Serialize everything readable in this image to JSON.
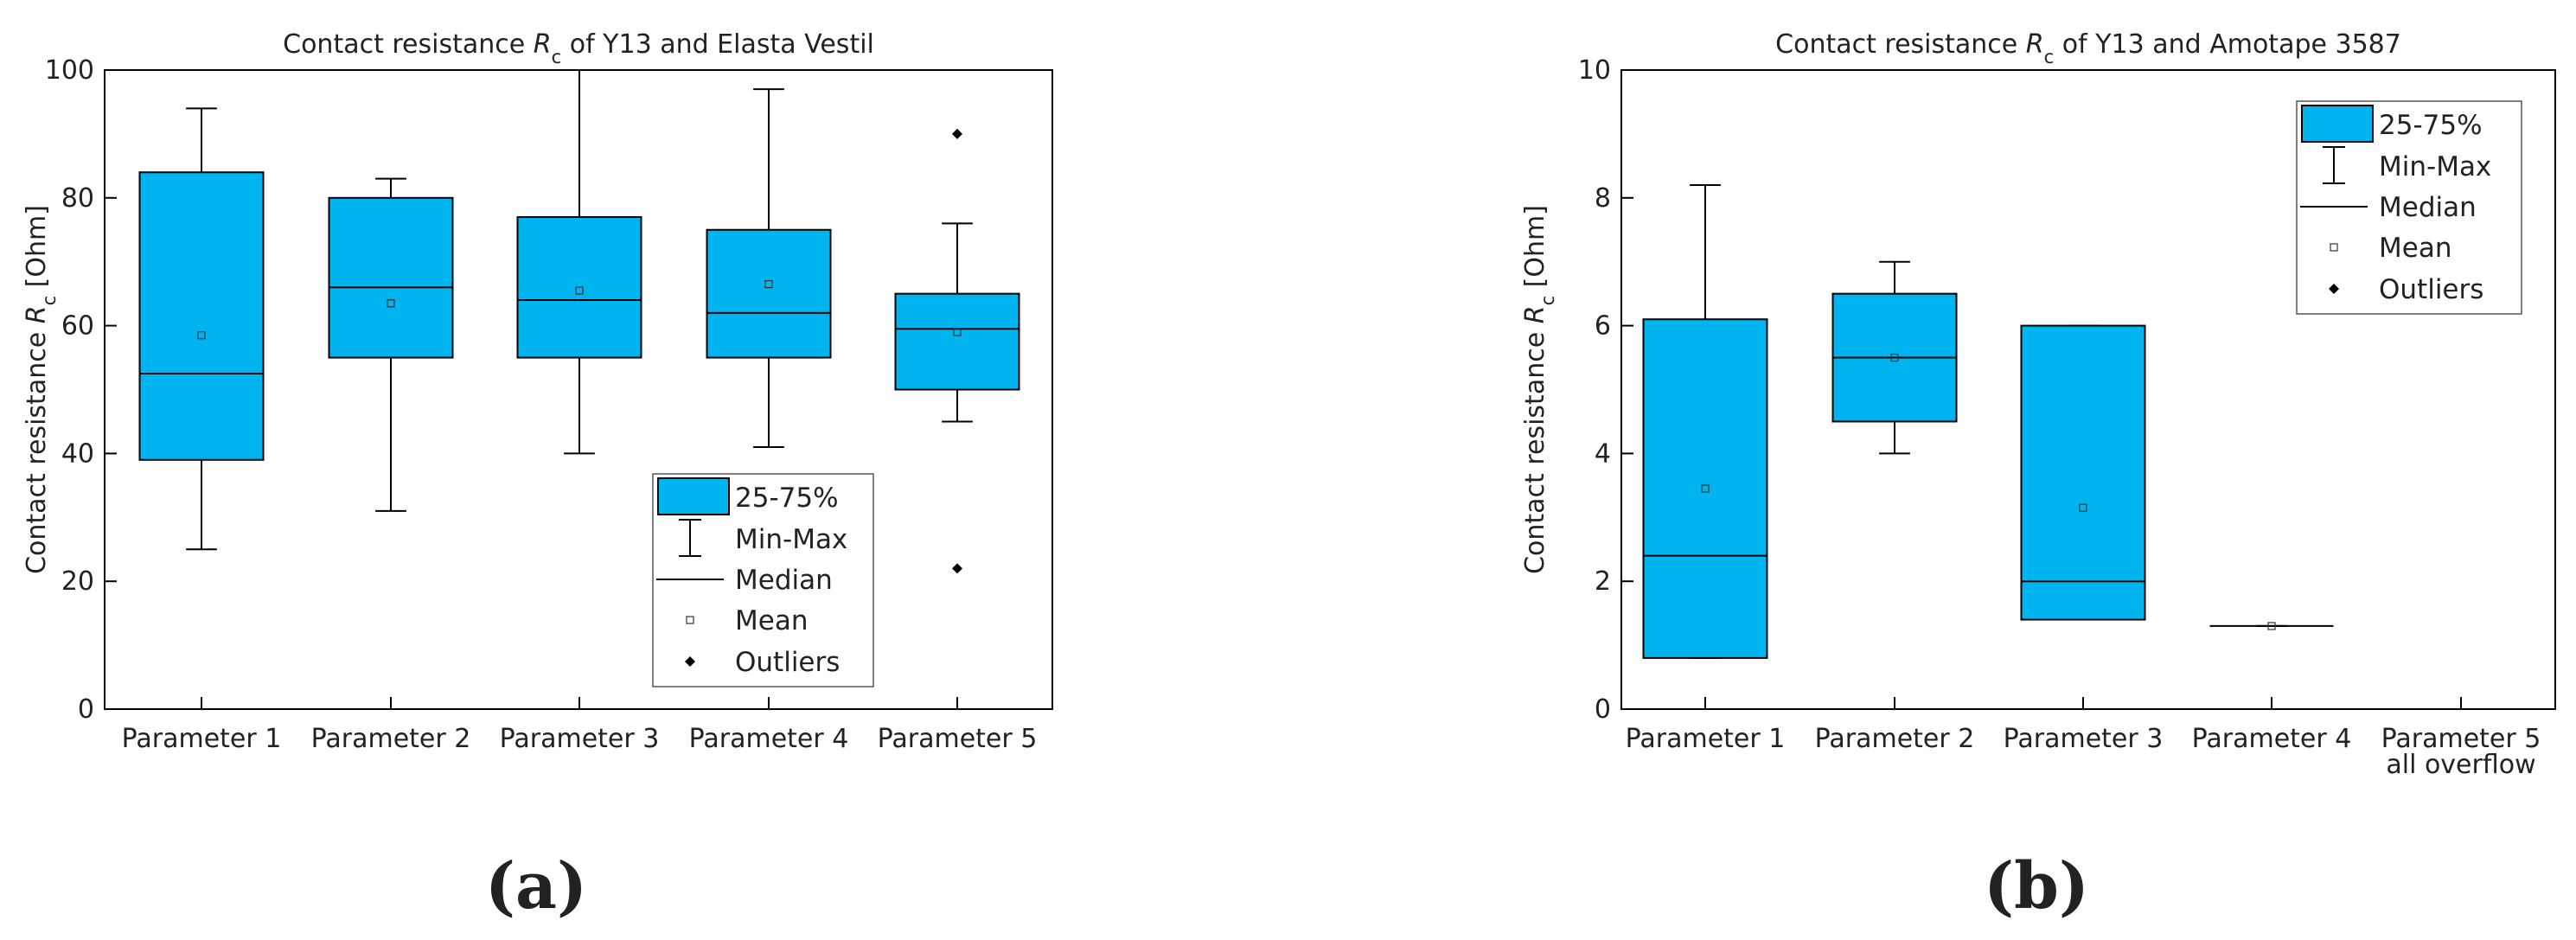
{
  "figure": {
    "box_color": "#00b4f0",
    "line_color": "#000000"
  },
  "chart_data": [
    {
      "id": "a",
      "panel_label": "(a)",
      "type": "box",
      "title_pre": "Contact resistance ",
      "title_sym": "R",
      "title_sub": "c",
      "title_post": " of Y13 and Elasta Vestil",
      "ylabel_pre": "Contact resistance ",
      "ylabel_sym": "R",
      "ylabel_sub": "c",
      "ylabel_post": " [Ohm]",
      "ylim": [
        0,
        100
      ],
      "yticks": [
        "0",
        "20",
        "40",
        "60",
        "80",
        "100"
      ],
      "ytick_values": [
        0,
        20,
        40,
        60,
        80,
        100
      ],
      "categories": [
        {
          "label": "Parameter 1",
          "label2": ""
        },
        {
          "label": "Parameter 2",
          "label2": ""
        },
        {
          "label": "Parameter 3",
          "label2": ""
        },
        {
          "label": "Parameter 4",
          "label2": ""
        },
        {
          "label": "Parameter 5",
          "label2": ""
        }
      ],
      "boxes": [
        {
          "min": 25,
          "q1": 39,
          "median": 52.5,
          "q3": 84,
          "max": 94,
          "mean": 58.5,
          "outliers": []
        },
        {
          "min": 31,
          "q1": 55,
          "median": 66,
          "q3": 80,
          "max": 83,
          "mean": 63.5,
          "outliers": []
        },
        {
          "min": 40,
          "q1": 55,
          "median": 64,
          "q3": 77,
          "max": 100,
          "mean": 65.5,
          "outliers": []
        },
        {
          "min": 41,
          "q1": 55,
          "median": 62,
          "q3": 75,
          "max": 97,
          "mean": 66.5,
          "outliers": []
        },
        {
          "min": 45,
          "q1": 50,
          "median": 59.5,
          "q3": 65,
          "max": 76,
          "mean": 59,
          "outliers": [
            90,
            22
          ]
        }
      ],
      "legend": {
        "position": "lower-right",
        "items": [
          "25-75%",
          "Min-Max",
          "Median",
          "Mean",
          "Outliers"
        ]
      }
    },
    {
      "id": "b",
      "panel_label": "(b)",
      "type": "box",
      "title_pre": "Contact resistance ",
      "title_sym": "R",
      "title_sub": "c",
      "title_post": " of Y13 and Amotape 3587",
      "ylabel_pre": "Contact resistance ",
      "ylabel_sym": "R",
      "ylabel_sub": "c",
      "ylabel_post": " [Ohm]",
      "ylim": [
        0,
        10
      ],
      "yticks": [
        "0",
        "2",
        "4",
        "6",
        "8",
        "10"
      ],
      "ytick_values": [
        0,
        2,
        4,
        6,
        8,
        10
      ],
      "categories": [
        {
          "label": "Parameter 1",
          "label2": ""
        },
        {
          "label": "Parameter 2",
          "label2": ""
        },
        {
          "label": "Parameter 3",
          "label2": ""
        },
        {
          "label": "Parameter 4",
          "label2": ""
        },
        {
          "label": "Parameter 5",
          "label2": "all overflow"
        }
      ],
      "boxes": [
        {
          "min": 0.8,
          "q1": 0.8,
          "median": 2.4,
          "q3": 6.1,
          "max": 8.2,
          "mean": 3.45,
          "outliers": []
        },
        {
          "min": 4.0,
          "q1": 4.5,
          "median": 5.5,
          "q3": 6.5,
          "max": 7.0,
          "mean": 5.5,
          "outliers": []
        },
        {
          "min": 1.4,
          "q1": 1.4,
          "median": 2.0,
          "q3": 6.0,
          "max": 6.0,
          "mean": 3.15,
          "outliers": []
        },
        {
          "min": 1.3,
          "q1": 1.3,
          "median": 1.3,
          "q3": 1.3,
          "max": 1.3,
          "mean": 1.3,
          "outliers": []
        },
        null
      ],
      "legend": {
        "position": "top-right",
        "items": [
          "25-75%",
          "Min-Max",
          "Median",
          "Mean",
          "Outliers"
        ]
      }
    }
  ]
}
